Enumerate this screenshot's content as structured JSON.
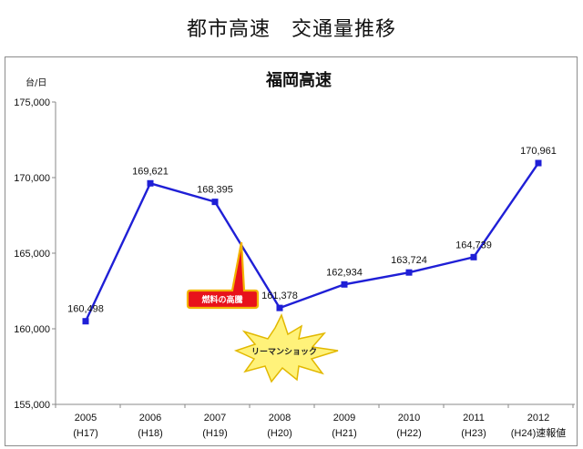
{
  "page": {
    "title": "都市高速　交通量推移"
  },
  "chart_data": {
    "type": "line",
    "title": "福岡高速",
    "unit_label": "台/日",
    "ylim": [
      155000,
      175000
    ],
    "y_ticks": [
      "155,000",
      "160,000",
      "165,000",
      "170,000",
      "175,000"
    ],
    "y_tick_values": [
      155000,
      160000,
      165000,
      170000,
      175000
    ],
    "categories": [
      "2005",
      "2006",
      "2007",
      "2008",
      "2009",
      "2010",
      "2011",
      "2012"
    ],
    "category_sublabels": [
      "(H17)",
      "(H18)",
      "(H19)",
      "(H20)",
      "(H21)",
      "(H22)",
      "(H23)",
      "(H24)速報値"
    ],
    "series": [
      {
        "values": [
          160498,
          169621,
          168395,
          161378,
          162934,
          163724,
          164739,
          170961
        ],
        "color": "#1f1fd6"
      }
    ],
    "data_labels": [
      "160,498",
      "169,621",
      "168,395",
      "161,378",
      "162,934",
      "163,724",
      "164,739",
      "170,961"
    ],
    "grid": false,
    "annotations": [
      {
        "text": "燃料の高騰",
        "style": "red-callout",
        "points_to": "2007-2008 decline"
      },
      {
        "text": "リーマンショック",
        "style": "yellow-burst",
        "points_to": "2008"
      }
    ]
  },
  "colors": {
    "line": "#1f1fd6",
    "callout_fill": "#e8121b",
    "callout_border": "#f3b400",
    "burst_fill": "#fff27a"
  }
}
